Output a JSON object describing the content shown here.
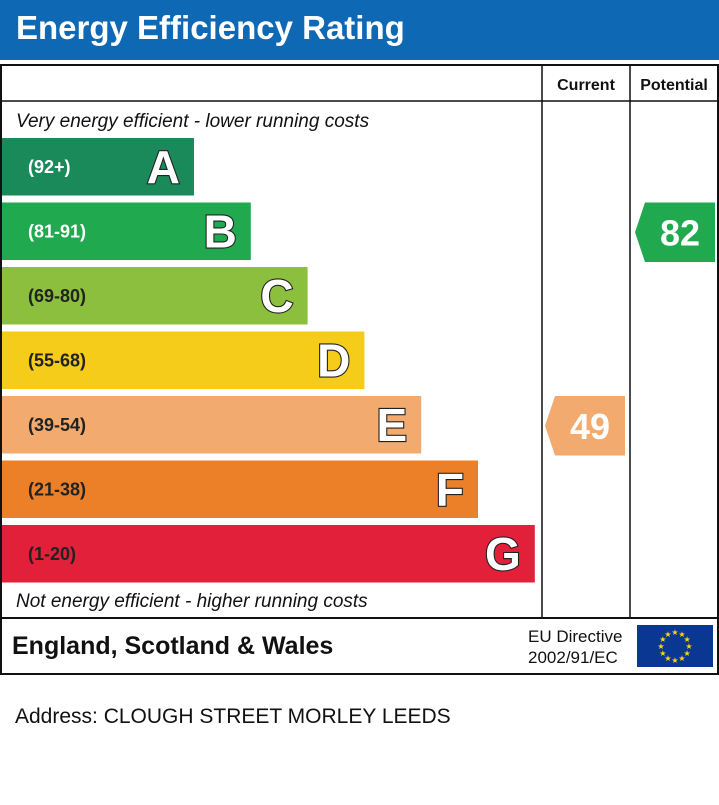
{
  "header": {
    "title": "Energy Efficiency Rating"
  },
  "columns": {
    "current": "Current",
    "potential": "Potential"
  },
  "notes": {
    "top": "Very energy efficient - lower running costs",
    "bottom": "Not energy efficient - higher running costs"
  },
  "chart_data": {
    "type": "bar",
    "title": "Energy Efficiency Rating",
    "bands": [
      {
        "letter": "A",
        "range": "(92+)",
        "color": "#1a8a5a"
      },
      {
        "letter": "B",
        "range": "(81-91)",
        "color": "#21a94f"
      },
      {
        "letter": "C",
        "range": "(69-80)",
        "color": "#8dbf3f"
      },
      {
        "letter": "D",
        "range": "(55-68)",
        "color": "#f5cc1a"
      },
      {
        "letter": "E",
        "range": "(39-54)",
        "color": "#f2aa6e"
      },
      {
        "letter": "F",
        "range": "(21-38)",
        "color": "#ec8028"
      },
      {
        "letter": "G",
        "range": "(1-20)",
        "color": "#e22039"
      }
    ],
    "current": {
      "value": 49,
      "band": "E",
      "color": "#f2aa6e"
    },
    "potential": {
      "value": 82,
      "band": "B",
      "color": "#21a94f"
    }
  },
  "footer": {
    "region": "England, Scotland & Wales",
    "directive_line1": "EU Directive",
    "directive_line2": "2002/91/EC",
    "flag_icon": "eu-flag-icon",
    "flag_color": "#0a3791",
    "star_color": "#ffd700"
  },
  "address": "Address: CLOUGH STREET MORLEY LEEDS"
}
